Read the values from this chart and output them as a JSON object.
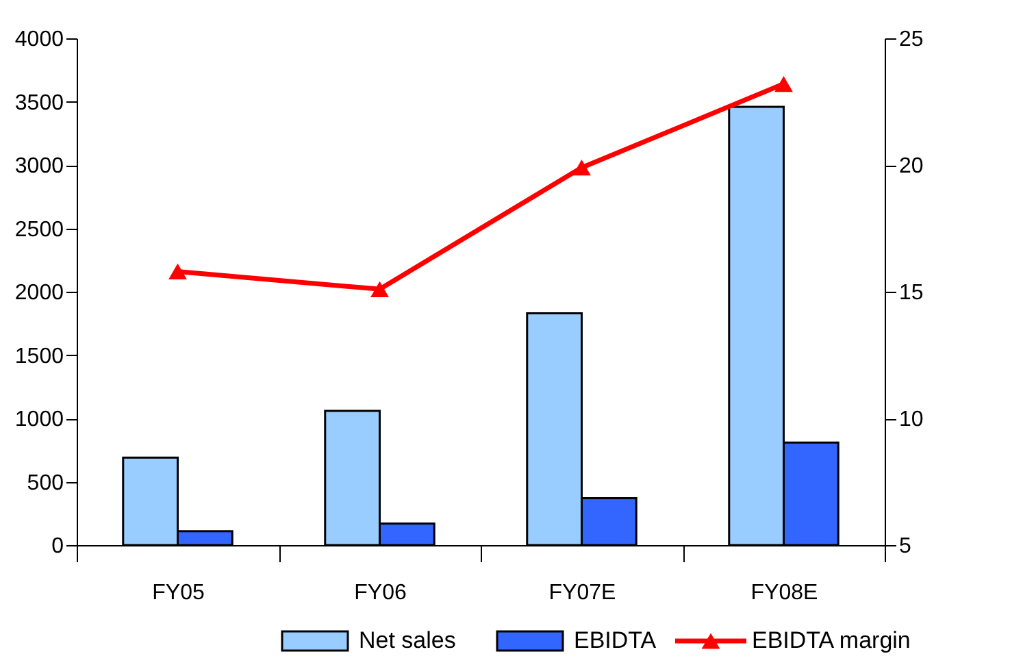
{
  "chart_data": {
    "type": "bar",
    "categories": [
      "FY05",
      "FY06",
      "FY07E",
      "FY08E"
    ],
    "series": [
      {
        "name": "Net sales",
        "color": "#99ccff",
        "values": [
          690,
          1060,
          1830,
          3460
        ]
      },
      {
        "name": "EBIDTA",
        "color": "#3366ff",
        "values": [
          110,
          170,
          370,
          810
        ]
      },
      {
        "name": "EBIDTA margin",
        "type": "line",
        "axis": "y2",
        "color": "#ff0000",
        "values": [
          15.8,
          15.1,
          19.9,
          23.2
        ]
      }
    ],
    "ylim": [
      0,
      4000
    ],
    "yticks": [
      0,
      500,
      1000,
      1500,
      2000,
      2500,
      3000,
      3500,
      4000
    ],
    "y2lim": [
      5,
      25
    ],
    "y2ticks": [
      5,
      10,
      15,
      20,
      25
    ],
    "marker": "triangle",
    "legend": "bottom",
    "grid": false
  }
}
